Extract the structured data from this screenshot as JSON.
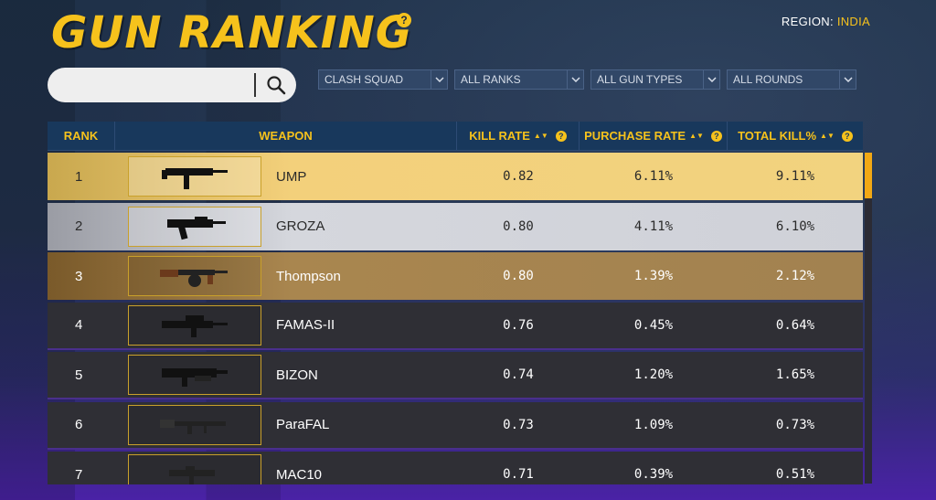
{
  "header": {
    "title": "GUN RANKING",
    "help": "?",
    "region_label": "REGION:",
    "region_value": "INDIA"
  },
  "search": {
    "value": "",
    "placeholder": ""
  },
  "filters": [
    "CLASH SQUAD",
    "ALL RANKS",
    "ALL GUN TYPES",
    "ALL ROUNDS"
  ],
  "table": {
    "headers": {
      "rank": "RANK",
      "weapon": "WEAPON",
      "kill_rate": "KILL RATE",
      "purchase_rate": "PURCHASE RATE",
      "total_kill": "TOTAL KILL%"
    },
    "rows": [
      {
        "rank": "1",
        "weapon": "UMP",
        "kill_rate": "0.82",
        "purchase_rate": "6.11%",
        "total_kill": "9.11%",
        "tier": "gold"
      },
      {
        "rank": "2",
        "weapon": "GROZA",
        "kill_rate": "0.80",
        "purchase_rate": "4.11%",
        "total_kill": "6.10%",
        "tier": "silver"
      },
      {
        "rank": "3",
        "weapon": "Thompson",
        "kill_rate": "0.80",
        "purchase_rate": "1.39%",
        "total_kill": "2.12%",
        "tier": "bronze"
      },
      {
        "rank": "4",
        "weapon": "FAMAS-II",
        "kill_rate": "0.76",
        "purchase_rate": "0.45%",
        "total_kill": "0.64%",
        "tier": "normal"
      },
      {
        "rank": "5",
        "weapon": "BIZON",
        "kill_rate": "0.74",
        "purchase_rate": "1.20%",
        "total_kill": "1.65%",
        "tier": "normal"
      },
      {
        "rank": "6",
        "weapon": "ParaFAL",
        "kill_rate": "0.73",
        "purchase_rate": "1.09%",
        "total_kill": "0.73%",
        "tier": "normal"
      },
      {
        "rank": "7",
        "weapon": "MAC10",
        "kill_rate": "0.71",
        "purchase_rate": "0.39%",
        "total_kill": "0.51%",
        "tier": "normal"
      }
    ]
  },
  "colors": {
    "accent": "#f6c21c",
    "header_bg": "#18385c",
    "row_bg": "#2f2f35"
  }
}
